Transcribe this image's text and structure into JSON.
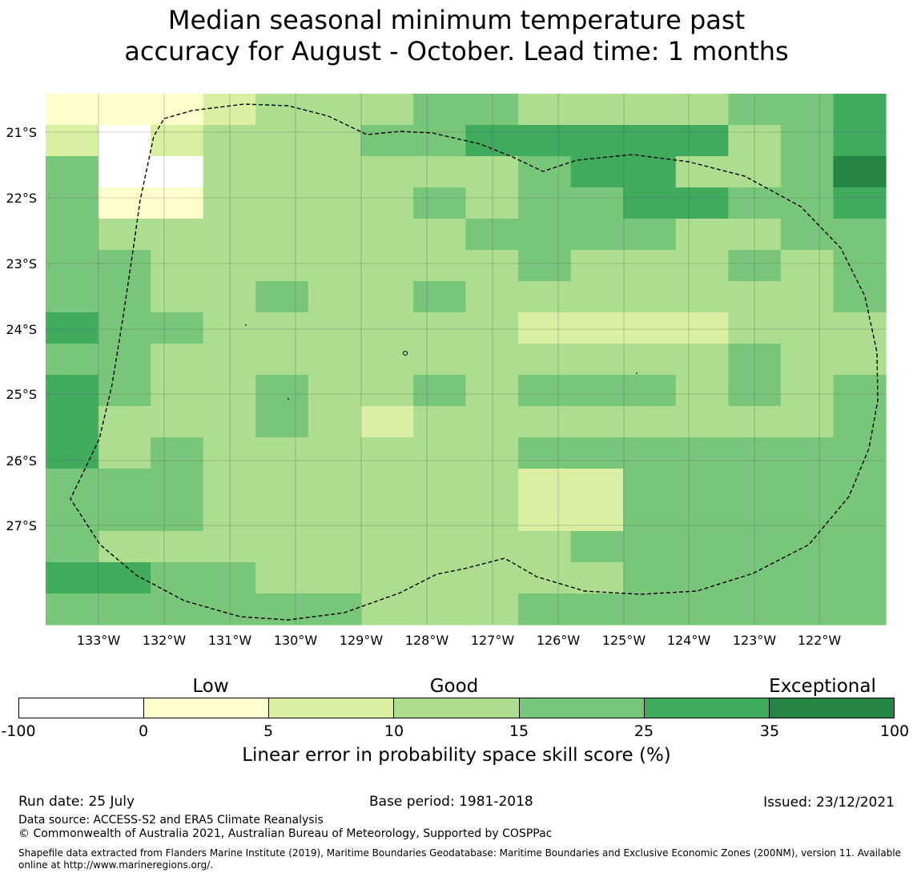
{
  "title_line1": "Median seasonal minimum temperature past",
  "title_line2": "accuracy for August - October. Lead time: 1 months",
  "map": {
    "lat_labels": [
      "21°S",
      "22°S",
      "23°S",
      "24°S",
      "25°S",
      "26°S",
      "27°S"
    ],
    "lon_labels": [
      "133°W",
      "132°W",
      "131°W",
      "130°W",
      "129°W",
      "128°W",
      "127°W",
      "126°W",
      "125°W",
      "124°W",
      "123°W",
      "122°W"
    ],
    "palette": [
      "#ffffff",
      "#ffffcc",
      "#d9f0a3",
      "#addd8e",
      "#78c679",
      "#41ab5d",
      "#238443"
    ],
    "grid": [
      "1112333443333445",
      "2023334455555345",
      "4003333334553346",
      "4113333434455445",
      "4333333344443344",
      "4433333334333434",
      "4433433433333334",
      "5443333332222333",
      "4433333333333433",
      "5433433434443434",
      "5333432333333334",
      "5343333334444444",
      "4443333332244444",
      "4443333332244444",
      "4333333333444444",
      "5544333333344444",
      "4444443334444444"
    ]
  },
  "colorbar": {
    "categories": [
      "Low",
      "Good",
      "Exceptional"
    ],
    "ticks": [
      "-100",
      "0",
      "5",
      "10",
      "15",
      "25",
      "35",
      "100"
    ],
    "colors": [
      "#ffffff",
      "#ffffcc",
      "#d9f0a3",
      "#addd8e",
      "#78c679",
      "#41ab5d",
      "#238443"
    ],
    "label": "Linear error in probability space skill score (%)"
  },
  "footer": {
    "run_date": "Run date: 25 July",
    "base_period": "Base period: 1981-2018",
    "issued": "Issued: 23/12/2021",
    "data_source": "Data source: ACCESS-S2 and ERA5 Climate Reanalysis",
    "copyright": "© Commonwealth of Australia 2021, Australian Bureau of Meteorology, Supported by COSPPac",
    "shapefile": "Shapefile data extracted from Flanders Marine Institute (2019), Maritime Boundaries Geodatabase: Maritime Boundaries and Exclusive Economic Zones (200NM), version 11. Available online at http://www.marineregions.org/."
  }
}
